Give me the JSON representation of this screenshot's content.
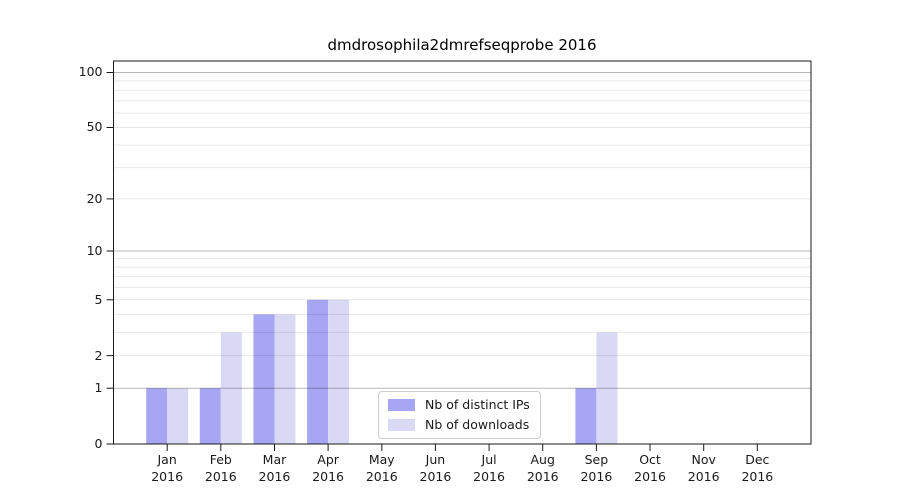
{
  "figure": {
    "background": "#ffffff"
  },
  "chart_data": {
    "type": "bar",
    "title": "dmdrosophila2dmrefseqprobe 2016",
    "categories": [
      "Jan",
      "Feb",
      "Mar",
      "Apr",
      "May",
      "Jun",
      "Jul",
      "Aug",
      "Sep",
      "Oct",
      "Nov",
      "Dec"
    ],
    "category_year": "2016",
    "series": [
      {
        "name": "Nb of distinct IPs",
        "color": "#a6a6f3",
        "values": [
          1,
          1,
          4,
          5,
          0,
          0,
          0,
          0,
          1,
          0,
          0,
          0
        ]
      },
      {
        "name": "Nb of downloads",
        "color": "#d9d9f6",
        "values": [
          1,
          3,
          4,
          5,
          0,
          0,
          0,
          0,
          3,
          0,
          0,
          0
        ]
      }
    ],
    "xlabel": "",
    "ylabel": "",
    "yscale": "log1p",
    "ylim": [
      0,
      112
    ],
    "yticks": [
      0,
      1,
      2,
      5,
      10,
      20,
      50,
      100
    ],
    "grid": {
      "on": true,
      "major_lines": [
        1,
        10,
        100
      ],
      "minor_lines": [
        2,
        3,
        4,
        5,
        6,
        7,
        8,
        9,
        20,
        30,
        40,
        50,
        60,
        70,
        80,
        90
      ]
    },
    "legend_position": "lower center"
  }
}
